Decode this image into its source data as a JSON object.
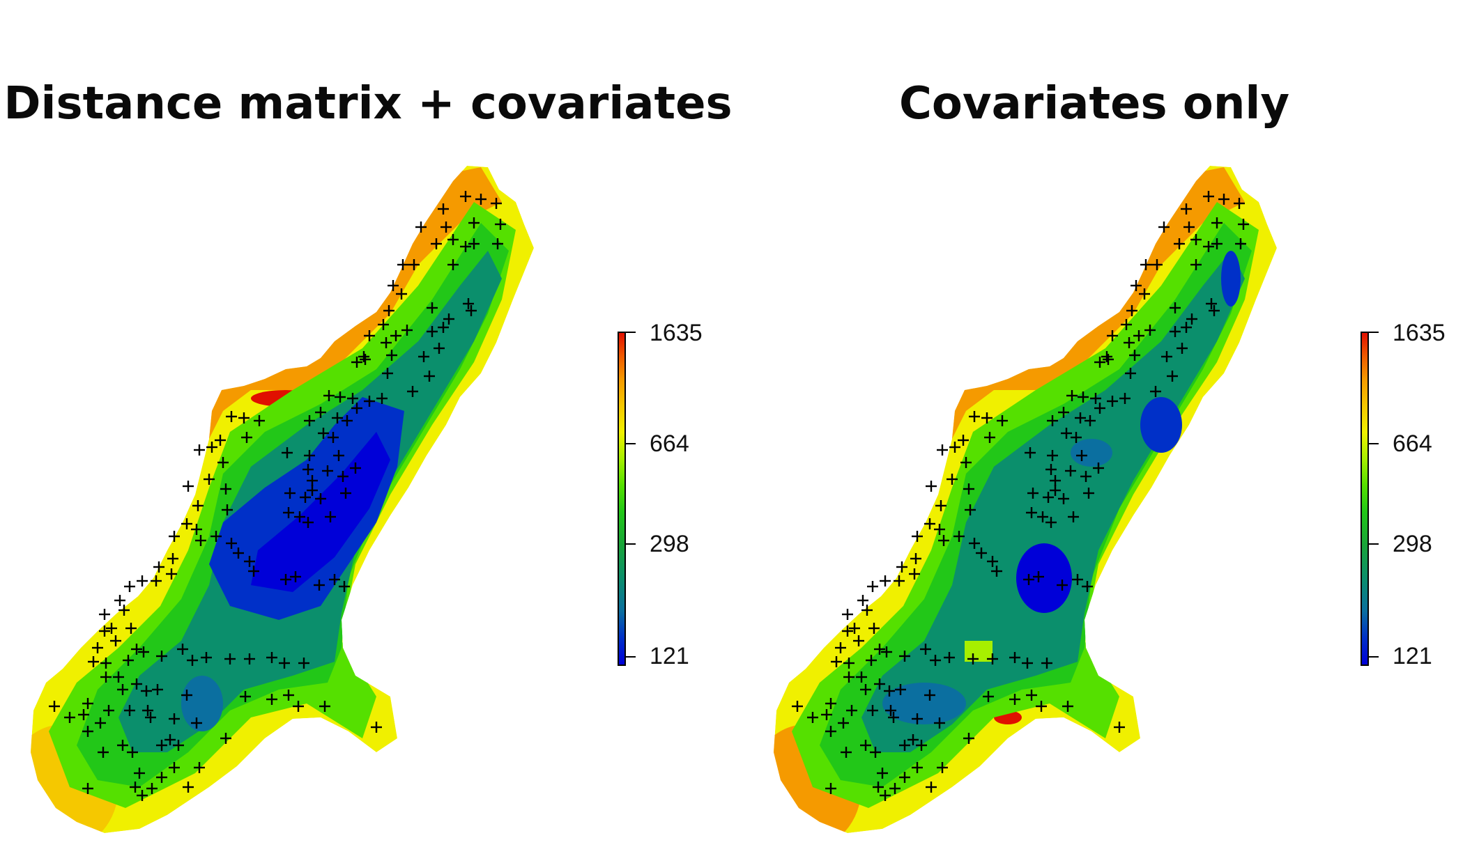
{
  "panels": [
    {
      "title": "Distance matrix + covariates",
      "colorbar": {
        "ticks": [
          "1635",
          "664",
          "298",
          "121"
        ],
        "max": 1635,
        "min": 121,
        "scale": "log"
      }
    },
    {
      "title": "Covariates only",
      "colorbar": {
        "ticks": [
          "1635",
          "664",
          "298",
          "121"
        ],
        "max": 1635,
        "min": 121,
        "scale": "log"
      }
    }
  ],
  "colors": {
    "low": "#0000d8",
    "mid_low": "#0b8f6c",
    "mid": "#22c718",
    "mid_high": "#f0f000",
    "high": "#e01000",
    "marker": "#000000"
  },
  "marker_symbol": "+"
}
